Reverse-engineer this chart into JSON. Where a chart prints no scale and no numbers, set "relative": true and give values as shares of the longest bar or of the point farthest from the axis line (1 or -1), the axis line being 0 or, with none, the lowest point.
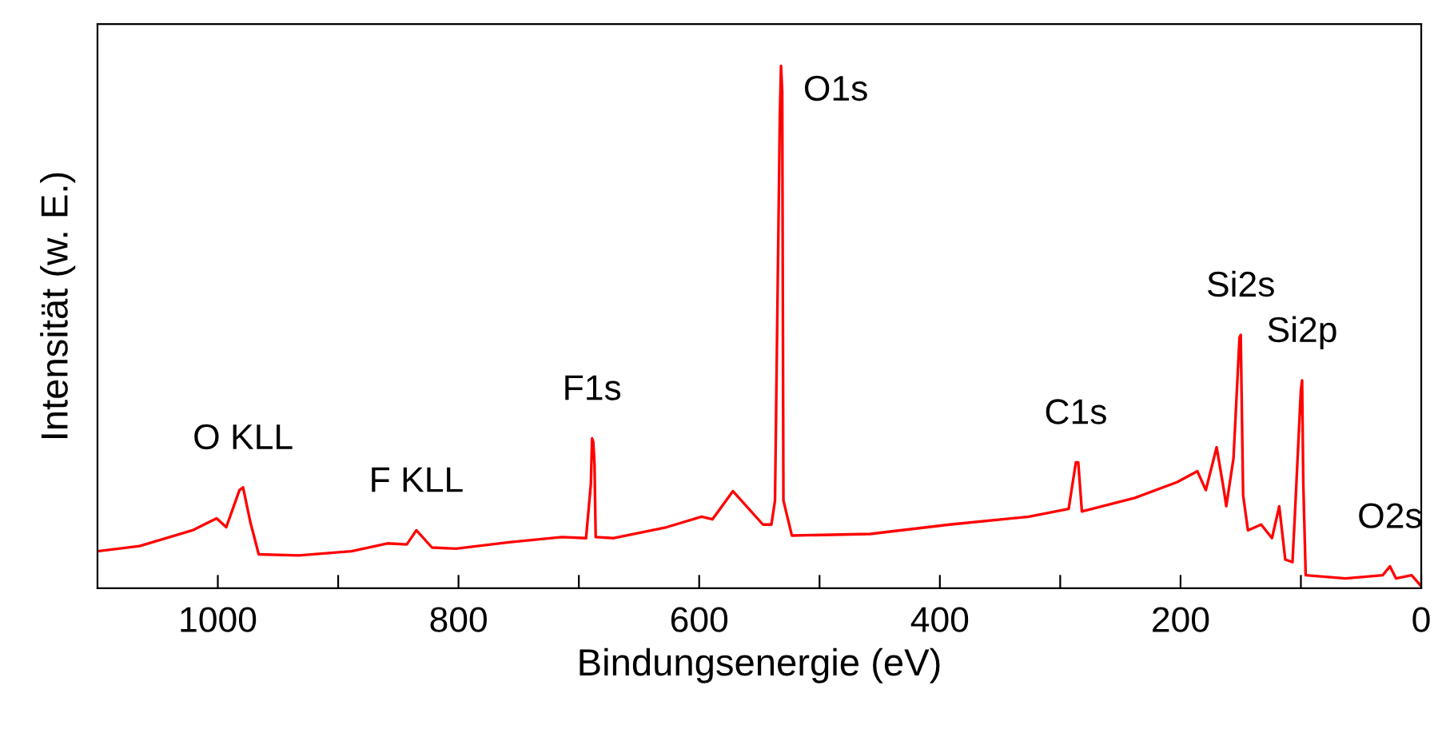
{
  "chart_data": {
    "type": "line",
    "relative": true,
    "xlabel": "Bindungsenergie (eV)",
    "ylabel": "Intensität (w. E.)",
    "xlim": [
      1100,
      0
    ],
    "xticks": [
      1000,
      {
        "value": 900,
        "label": null
      },
      800,
      {
        "value": 700,
        "label": null
      },
      600,
      {
        "value": 500,
        "label": null
      },
      400,
      {
        "value": 300,
        "label": null
      },
      200,
      {
        "value": 100,
        "label": null
      },
      0
    ],
    "grid": false,
    "legend": false,
    "marker": "none",
    "line_style": "solid",
    "tick_labels": "x",
    "series": [
      {
        "color": "#ff0000",
        "x": [
          1100,
          1065,
          1021,
          1001,
          993,
          982,
          979,
          973,
          966,
          933,
          889,
          859,
          843,
          835,
          822,
          802,
          758,
          714,
          694,
          690,
          689,
          688,
          687,
          686,
          671,
          627,
          598,
          589,
          572,
          547,
          540,
          537,
          533,
          532,
          531,
          530,
          523,
          458,
          392,
          326,
          293,
          287,
          285,
          282,
          238,
          203,
          186,
          179,
          170,
          164,
          162,
          156,
          151,
          150,
          148,
          144,
          133,
          124,
          118,
          113,
          107,
          105,
          100,
          99,
          98,
          96,
          63,
          32,
          26,
          21,
          8,
          0
        ],
        "values": [
          0.071,
          0.081,
          0.111,
          0.134,
          0.117,
          0.188,
          0.193,
          0.127,
          0.065,
          0.063,
          0.071,
          0.086,
          0.084,
          0.111,
          0.078,
          0.076,
          0.088,
          0.098,
          0.096,
          0.2,
          0.287,
          0.28,
          0.239,
          0.098,
          0.096,
          0.117,
          0.137,
          0.132,
          0.186,
          0.122,
          0.122,
          0.168,
          0.9,
          1.0,
          0.95,
          0.168,
          0.101,
          0.104,
          0.122,
          0.137,
          0.152,
          0.241,
          0.241,
          0.147,
          0.173,
          0.203,
          0.224,
          0.188,
          0.27,
          0.188,
          0.157,
          0.249,
          0.48,
          0.485,
          0.178,
          0.111,
          0.122,
          0.096,
          0.157,
          0.055,
          0.05,
          0.14,
          0.38,
          0.398,
          0.2,
          0.025,
          0.019,
          0.025,
          0.042,
          0.019,
          0.025,
          0.004
        ]
      }
    ],
    "annotations": [
      {
        "text": "O KLL",
        "x": 979,
        "y": 0.193
      },
      {
        "text": "F KLL",
        "x": 835,
        "y": 0.111
      },
      {
        "text": "F1s",
        "x": 689,
        "y": 0.287
      },
      {
        "text": "O1s",
        "x": 532,
        "y": 1.0
      },
      {
        "text": "C1s",
        "x": 287,
        "y": 0.241
      },
      {
        "text": "Si2s",
        "x": 150,
        "y": 0.485
      },
      {
        "text": "Si2p",
        "x": 99,
        "y": 0.398
      },
      {
        "text": "O2s",
        "x": 26,
        "y": 0.042
      }
    ]
  }
}
